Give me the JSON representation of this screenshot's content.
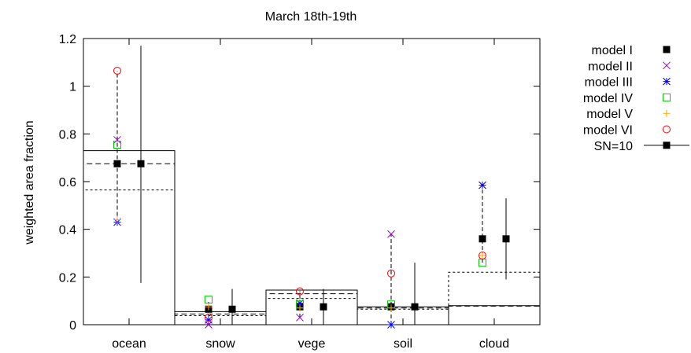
{
  "chart_data": {
    "type": "scatter",
    "title": "March 18th-19th",
    "xlabel": "",
    "ylabel": "weighted area fraction",
    "categories": [
      "ocean",
      "snow",
      "vege",
      "soil",
      "cloud"
    ],
    "ylim": [
      0,
      1.2
    ],
    "yticks": [
      0,
      0.2,
      0.4,
      0.6,
      0.8,
      1,
      1.2
    ],
    "ytick_labels": [
      "0",
      "0.2",
      "0.4",
      "0.6",
      "0.8",
      "1",
      "1.2"
    ],
    "grid": false,
    "legend_position": "outside-right",
    "series": [
      {
        "name": "model I",
        "marker": "filled-square",
        "color": "#000000",
        "values": [
          0.675,
          0.065,
          0.075,
          0.075,
          0.36
        ]
      },
      {
        "name": "model II",
        "marker": "x",
        "color": "#9400d3",
        "values": [
          0.775,
          0.0,
          0.03,
          0.38,
          0.585
        ]
      },
      {
        "name": "model III",
        "marker": "asterisk",
        "color": "#0000ff",
        "values": [
          0.43,
          0.02,
          0.09,
          0.0,
          0.585
        ]
      },
      {
        "name": "model IV",
        "marker": "open-square",
        "color": "#00cc00",
        "values": [
          0.755,
          0.105,
          0.085,
          0.085,
          0.26
        ]
      },
      {
        "name": "model V",
        "marker": "plus",
        "color": "#ffa500",
        "values": [
          0.44,
          0.075,
          0.07,
          0.07,
          0.29
        ]
      },
      {
        "name": "model VI",
        "marker": "open-circle",
        "color": "#ff0000",
        "values": [
          1.065,
          0.03,
          0.14,
          0.215,
          0.29
        ]
      },
      {
        "name": "SN=10",
        "marker": "filled-square-errorbar",
        "color": "#000000",
        "values": [
          0.675,
          0.065,
          0.075,
          0.075,
          0.36
        ],
        "err_low": [
          0.175,
          0.0,
          0.0,
          0.0,
          0.19
        ],
        "err_high": [
          1.17,
          0.15,
          0.15,
          0.26,
          0.53
        ]
      }
    ],
    "model_range": {
      "min": [
        0.43,
        0.0,
        0.03,
        0.0,
        0.26
      ],
      "max": [
        1.065,
        0.105,
        0.14,
        0.38,
        0.585
      ]
    },
    "reference_steps": [
      {
        "style": "solid",
        "values": [
          0.73,
          0.055,
          0.145,
          0.075,
          0.08
        ]
      },
      {
        "style": "dashed",
        "values": [
          0.675,
          0.045,
          0.13,
          0.07,
          0.078
        ]
      },
      {
        "style": "dotted",
        "values": [
          0.565,
          0.038,
          0.11,
          0.065,
          0.22
        ]
      }
    ]
  }
}
